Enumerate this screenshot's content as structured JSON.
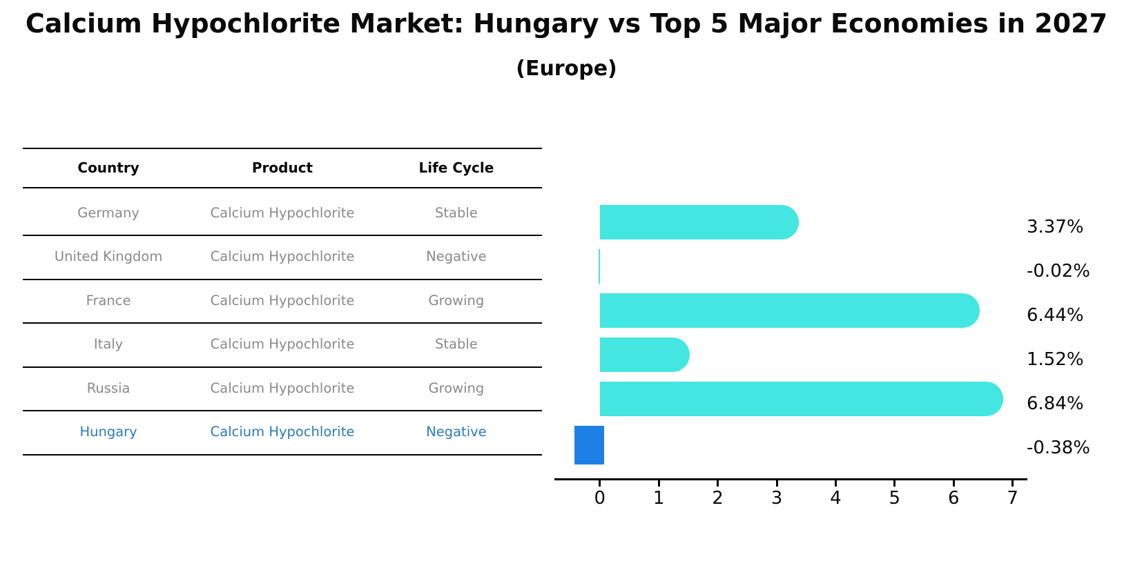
{
  "title": "Calcium Hypochlorite Market: Hungary vs Top 5 Major Economies in 2027",
  "subtitle": "(Europe)",
  "table": {
    "headers": [
      "Country",
      "Product",
      "Life Cycle"
    ],
    "rows": [
      {
        "country": "Germany",
        "product": "Calcium Hypochlorite",
        "life_cycle": "Stable",
        "highlighted": false
      },
      {
        "country": "United Kingdom",
        "product": "Calcium Hypochlorite",
        "life_cycle": "Negative",
        "highlighted": false
      },
      {
        "country": "France",
        "product": "Calcium Hypochlorite",
        "life_cycle": "Growing",
        "highlighted": false
      },
      {
        "country": "Italy",
        "product": "Calcium Hypochlorite",
        "life_cycle": "Stable",
        "highlighted": false
      },
      {
        "country": "Russia",
        "product": "Calcium Hypochlorite",
        "life_cycle": "Growing",
        "highlighted": false
      },
      {
        "country": "Hungary",
        "product": "Calcium Hypochlorite",
        "life_cycle": "Negative",
        "highlighted": true
      }
    ]
  },
  "chart_data": {
    "type": "bar",
    "orientation": "horizontal",
    "title": "Calcium Hypochlorite Market: Hungary vs Top 5 Major Economies in 2027",
    "subtitle": "(Europe)",
    "categories": [
      "Germany",
      "United Kingdom",
      "France",
      "Italy",
      "Russia",
      "Hungary"
    ],
    "values": [
      3.37,
      -0.02,
      6.44,
      1.52,
      6.84,
      -0.38
    ],
    "value_labels": [
      "3.37%",
      "-0.02%",
      "6.44%",
      "1.52%",
      "6.84%",
      "-0.38%"
    ],
    "unit": "%",
    "xlabel": "",
    "ylabel": "",
    "xticks": [
      0,
      1,
      2,
      3,
      4,
      5,
      6,
      7
    ],
    "xlim": [
      -0.77,
      7.25
    ],
    "grid": false,
    "legend": "none",
    "highlight_index": 5
  },
  "colors": {
    "bar": "#43e6e1",
    "highlight_bar": "#1e80e6",
    "highlight_text": "#2a7bbf",
    "table_text": "#8a8a8a",
    "header_text": "#0a0a0a",
    "line": "#000000"
  }
}
